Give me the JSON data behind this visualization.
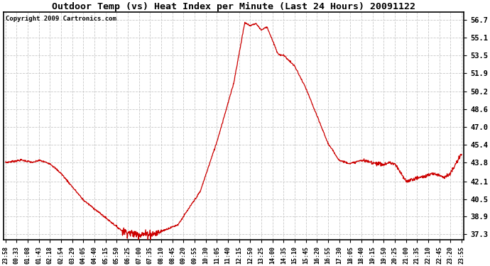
{
  "title": "Outdoor Temp (vs) Heat Index per Minute (Last 24 Hours) 20091122",
  "copyright": "Copyright 2009 Cartronics.com",
  "line_color": "#cc0000",
  "background_color": "#ffffff",
  "grid_color": "#c8c8c8",
  "yticks": [
    37.3,
    38.9,
    40.5,
    42.1,
    43.8,
    45.4,
    47.0,
    48.6,
    50.2,
    51.9,
    53.5,
    55.1,
    56.7
  ],
  "ylim": [
    36.8,
    57.4
  ],
  "xtick_labels": [
    "23:58",
    "00:33",
    "01:08",
    "01:43",
    "02:18",
    "02:54",
    "03:29",
    "04:05",
    "04:40",
    "05:15",
    "05:50",
    "06:25",
    "07:00",
    "07:35",
    "08:10",
    "08:45",
    "09:20",
    "09:55",
    "10:30",
    "11:05",
    "11:40",
    "12:15",
    "12:50",
    "13:25",
    "14:00",
    "14:35",
    "15:10",
    "15:45",
    "16:20",
    "16:55",
    "17:30",
    "18:05",
    "18:40",
    "19:15",
    "19:50",
    "20:25",
    "21:00",
    "21:35",
    "22:10",
    "22:45",
    "23:20",
    "23:55"
  ],
  "figwidth": 6.9,
  "figheight": 3.75,
  "dpi": 100
}
